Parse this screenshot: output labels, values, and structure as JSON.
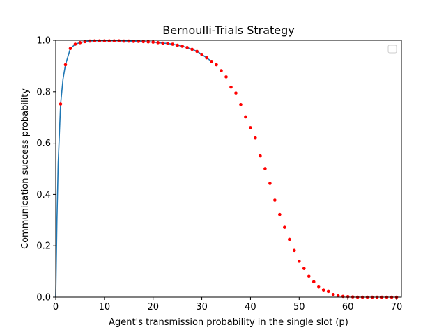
{
  "chart_data": {
    "type": "line",
    "title": "Bernoulli-Trials Strategy",
    "xlabel": "Agent's transmission probability in the single slot (p)",
    "ylabel": "Communication success probability",
    "xlim": [
      0,
      71
    ],
    "ylim": [
      0,
      1.0
    ],
    "xticks": [
      0,
      10,
      20,
      30,
      40,
      50,
      60,
      70
    ],
    "yticks": [
      0.0,
      0.2,
      0.4,
      0.6,
      0.8,
      1.0
    ],
    "ytick_labels": [
      "0.0",
      "0.2",
      "0.4",
      "0.6",
      "0.8",
      "1.0"
    ],
    "grid": false,
    "legend": "top-right (empty)",
    "series": [
      {
        "style": "line",
        "color": "#1f77b4",
        "x": [
          0,
          0.25,
          0.5,
          1,
          1.5,
          2,
          3,
          4,
          5,
          6,
          7,
          8,
          9,
          10,
          11,
          12,
          13,
          14,
          15,
          16,
          17,
          18,
          19,
          20,
          21,
          22,
          23,
          24,
          25,
          26,
          27,
          28,
          29,
          30,
          31,
          32
        ],
        "y": [
          0.0,
          0.3,
          0.52,
          0.752,
          0.85,
          0.905,
          0.968,
          0.985,
          0.991,
          0.995,
          0.997,
          0.998,
          0.998,
          0.998,
          0.998,
          0.998,
          0.998,
          0.997,
          0.997,
          0.996,
          0.996,
          0.995,
          0.994,
          0.993,
          0.991,
          0.989,
          0.988,
          0.985,
          0.981,
          0.977,
          0.972,
          0.965,
          0.957,
          0.945,
          0.932,
          0.918
        ]
      },
      {
        "style": "scatter",
        "color": "#ff0000",
        "x": [
          1,
          2,
          3,
          4,
          5,
          6,
          7,
          8,
          9,
          10,
          11,
          12,
          13,
          14,
          15,
          16,
          17,
          18,
          19,
          20,
          21,
          22,
          23,
          24,
          25,
          26,
          27,
          28,
          29,
          30,
          31,
          32,
          33,
          34,
          35,
          36,
          37,
          38,
          39,
          40,
          41,
          42,
          43,
          44,
          45,
          46,
          47,
          48,
          49,
          50,
          51,
          52,
          53,
          54,
          55,
          56,
          57,
          58,
          59,
          60,
          61,
          62,
          63,
          64,
          65,
          66,
          67,
          68,
          69,
          70
        ],
        "y": [
          0.752,
          0.905,
          0.968,
          0.985,
          0.991,
          0.995,
          0.997,
          0.998,
          0.998,
          0.998,
          0.998,
          0.998,
          0.998,
          0.997,
          0.997,
          0.996,
          0.996,
          0.995,
          0.994,
          0.993,
          0.991,
          0.989,
          0.988,
          0.985,
          0.981,
          0.977,
          0.972,
          0.965,
          0.957,
          0.945,
          0.932,
          0.918,
          0.905,
          0.882,
          0.858,
          0.818,
          0.795,
          0.75,
          0.702,
          0.66,
          0.62,
          0.55,
          0.5,
          0.443,
          0.378,
          0.322,
          0.272,
          0.225,
          0.182,
          0.14,
          0.112,
          0.082,
          0.06,
          0.04,
          0.028,
          0.022,
          0.01,
          0.005,
          0.003,
          0.002,
          0.001,
          0.0,
          0.0,
          0.0,
          0.0,
          0.0,
          0.0,
          0.0,
          0.0,
          0.0
        ]
      }
    ]
  }
}
